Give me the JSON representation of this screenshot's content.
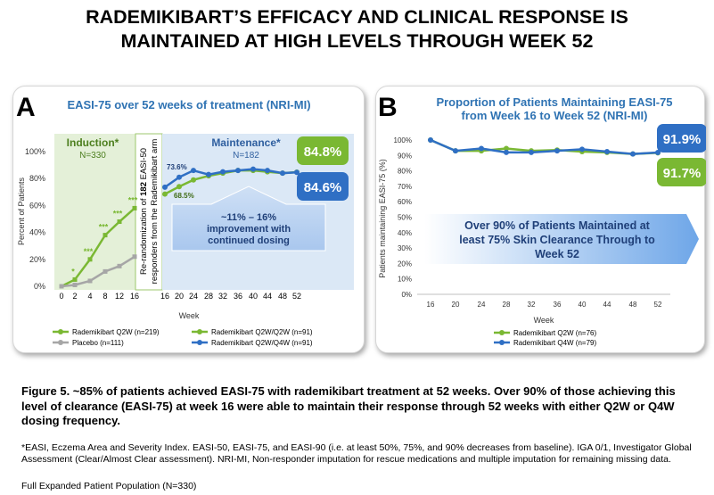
{
  "title_lines": [
    "RADEMIKIBART’S EFFICACY AND CLINICAL RESPONSE IS",
    "MAINTAINED AT HIGH LEVELS THROUGH WEEK 52"
  ],
  "colors": {
    "green": "#7ab833",
    "gray": "#a6a6a6",
    "blue": "#2f6fc4",
    "title_blue": "#2f73b3",
    "induction_bg": "#e4f0d8",
    "maintenance_bg": "#dbe8f6"
  },
  "panel_a": {
    "letter": "A",
    "section_induction": "Induction*",
    "section_induction_n": "N=330",
    "section_maintenance": "Maintenance*",
    "section_maintenance_n": "N=182",
    "rerandomization_lines": [
      "Re-randomization of 182 EASI-50",
      "responders from the Rademikibart arm"
    ],
    "rerandomization_bold": "182",
    "callout_lines": [
      "~11% – 16%",
      "improvement with",
      "continued dosing"
    ],
    "badge_green": "84.8%",
    "badge_blue": "84.6%",
    "label_736": "73.6%",
    "label_685": "68.5%",
    "stars": [
      "*",
      "***",
      "***",
      "***",
      "***"
    ]
  },
  "panel_b": {
    "letter": "B",
    "badge_blue": "91.9%",
    "badge_green": "91.7%",
    "arrow_lines": [
      "Over 90% of Patients Maintained at",
      "least 75% Skin Clearance Through to",
      "Week 52"
    ]
  },
  "chart_data": [
    {
      "type": "line",
      "title": "EASI-75 over 52 weeks of treatment (NRI-MI)",
      "xlabel": "Week",
      "ylabel": "Percent of Patients",
      "ylim": [
        0,
        100
      ],
      "yticks": [
        "0%",
        "20%",
        "40%",
        "60%",
        "80%",
        "100%"
      ],
      "xticks_induction": [
        "0",
        "2",
        "4",
        "8",
        "12",
        "16"
      ],
      "xticks_maintenance": [
        "16",
        "20",
        "24",
        "28",
        "32",
        "36",
        "40",
        "44",
        "48",
        "52"
      ],
      "series": [
        {
          "name": "Rademikibart Q2W (n=219)",
          "color": "#7ab833",
          "x": [
            0,
            2,
            4,
            8,
            12,
            16
          ],
          "values": [
            0,
            5,
            20,
            38,
            48,
            58
          ]
        },
        {
          "name": "Placebo (n=111)",
          "color": "#a6a6a6",
          "x": [
            0,
            2,
            4,
            8,
            12,
            16
          ],
          "values": [
            0,
            1,
            4,
            11,
            15,
            22
          ]
        },
        {
          "name": "Rademikibart Q2W/Q2W (n=91)",
          "color": "#7ab833",
          "x": [
            16,
            20,
            24,
            28,
            32,
            36,
            40,
            44,
            48,
            52
          ],
          "values": [
            68.5,
            74,
            79,
            82,
            84,
            86,
            86,
            85,
            84,
            84.8
          ]
        },
        {
          "name": "Rademikibart Q2W/Q4W (n=91)",
          "color": "#2f6fc4",
          "x": [
            16,
            20,
            24,
            28,
            32,
            36,
            40,
            44,
            48,
            52
          ],
          "values": [
            73.6,
            81,
            86,
            83,
            85,
            86,
            87,
            86,
            84,
            84.6
          ]
        }
      ]
    },
    {
      "type": "line",
      "title": "Proportion of Patients Maintaining EASI-75 from Week 16 to Week 52 (NRI-MI)",
      "title_lines": [
        "Proportion of Patients Maintaining EASI-75",
        "from Week 16 to Week 52 (NRI-MI)"
      ],
      "xlabel": "Week",
      "ylabel": "Patients maintaining EASI-75 (%)",
      "ylim": [
        0,
        100
      ],
      "yticks": [
        "0%",
        "10%",
        "20%",
        "30%",
        "40%",
        "50%",
        "60%",
        "70%",
        "80%",
        "90%",
        "100%"
      ],
      "categories": [
        "16",
        "20",
        "24",
        "28",
        "32",
        "36",
        "40",
        "44",
        "48",
        "52"
      ],
      "series": [
        {
          "name": "Rademikibart Q2W (n=76)",
          "color": "#7ab833",
          "values": [
            100,
            93,
            93,
            94.5,
            93,
            93.5,
            92.5,
            92,
            91,
            91.7
          ]
        },
        {
          "name": "Rademikibart Q4W (n=79)",
          "color": "#2f6fc4",
          "values": [
            100,
            93,
            94.5,
            92,
            92,
            93,
            94,
            92.5,
            91,
            91.9
          ]
        }
      ]
    }
  ],
  "caption": "Figure 5. ~85% of patients achieved EASI-75 with rademikibart treatment at 52 weeks. Over 90% of those achieving this level of clearance (EASI-75) at week 16 were able to maintain their response through 52 weeks with either Q2W or Q4W dosing frequency.",
  "footnote": "*EASI, Eczema Area and Severity Index. EASI-50, EASI-75, and EASI-90 (i.e. at least 50%, 75%, and 90% decreases from baseline). IGA 0/1, Investigator Global Assessment (Clear/Almost Clear assessment). NRI-MI, Non-responder imputation for rescue medications and multiple imputation for remaining missing data.",
  "population": "Full Expanded Patient Population (N=330)"
}
